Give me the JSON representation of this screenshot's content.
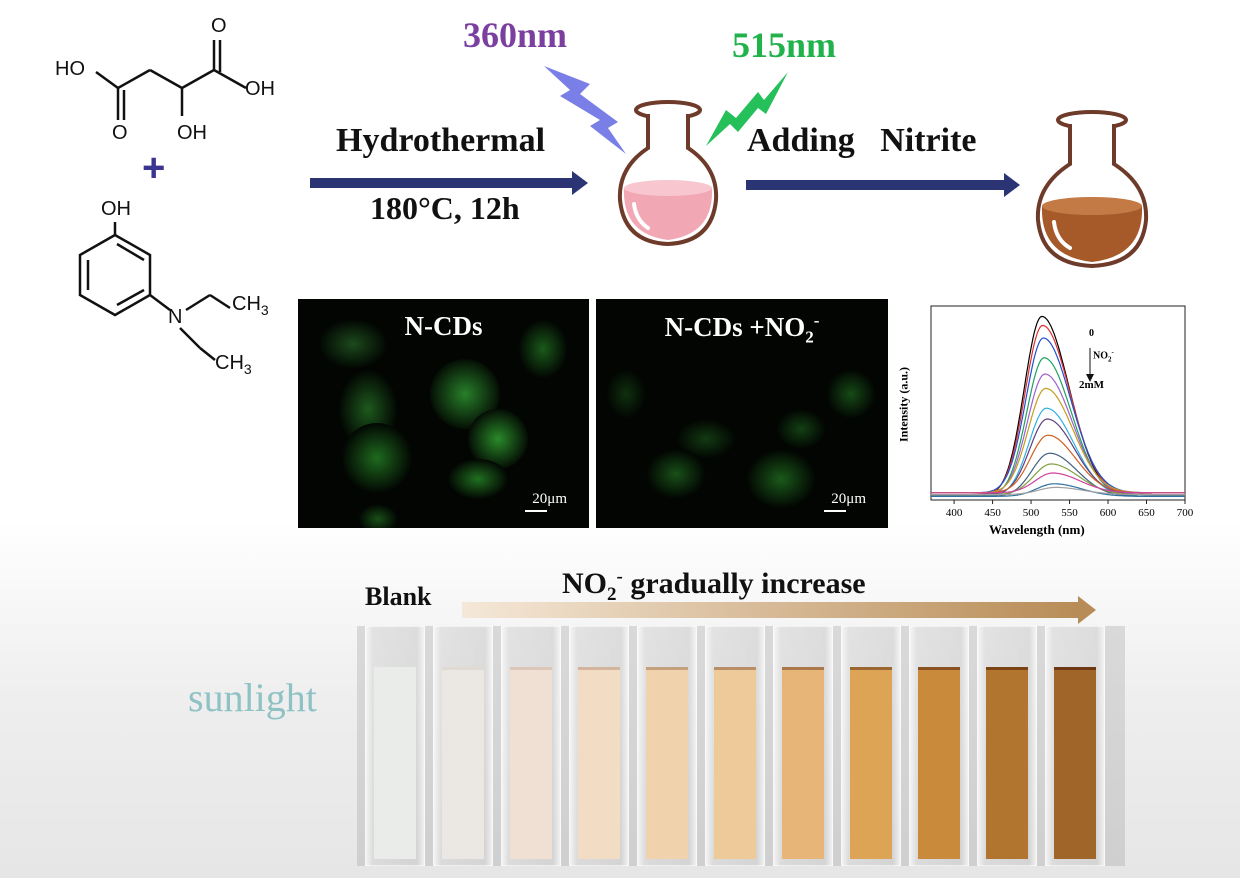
{
  "wavelengths": {
    "excitation": "360nm",
    "emission": "515nm"
  },
  "molecule1": {
    "ho": "HO",
    "oh_right": "OH",
    "o_left": "O",
    "oh_bottom": "OH",
    "o_top": "O"
  },
  "plus_sign": "+",
  "molecule2": {
    "oh": "OH",
    "n": "N",
    "ch3_top": "CH",
    "ch3_bottom": "CH",
    "sub3": "3"
  },
  "step1": {
    "label": "Hydrothermal",
    "condition": "180°C, 12h"
  },
  "step2": {
    "label": "Adding   Nitrite"
  },
  "micro_left": {
    "label": "N-CDs",
    "scale": "20μm"
  },
  "micro_right": {
    "label_main": "N-CDs +NO",
    "label_sub": "2",
    "label_sup": "-",
    "scale": "20μm"
  },
  "spectrum": {
    "ylabel": "Intensity (a.u.)",
    "xlabel": "Wavelength (nm)",
    "annot_top": "0",
    "annot_mid_main": "NO",
    "annot_mid_sub": "2",
    "annot_mid_sup": "-",
    "annot_bottom": "2mM"
  },
  "chart_data": {
    "type": "line",
    "xlabel": "Wavelength (nm)",
    "ylabel": "Intensity (a.u.)",
    "xlim": [
      370,
      700
    ],
    "x_ticks": [
      "400",
      "450",
      "500",
      "550",
      "600",
      "650",
      "700"
    ],
    "peak_x": [
      514,
      515,
      516,
      517,
      518,
      519,
      520,
      521,
      522,
      524,
      526,
      528,
      530,
      532
    ],
    "peak_intensity": [
      1.0,
      0.94,
      0.86,
      0.77,
      0.67,
      0.58,
      0.49,
      0.42,
      0.32,
      0.24,
      0.17,
      0.11,
      0.07,
      0.04
    ],
    "colors": [
      "#000000",
      "#e03030",
      "#2050d0",
      "#20a060",
      "#a060d0",
      "#c0a020",
      "#30b0e0",
      "#604080",
      "#d06020",
      "#406080",
      "#80a040",
      "#d040a0",
      "#3070a0",
      "#a0a0a0"
    ]
  },
  "bottom": {
    "blank": "Blank",
    "title_main": "NO",
    "title_sub": "2",
    "title_sup": "-",
    "title_rest": " gradually increase",
    "sunlight": "sunlight"
  },
  "cuvette_colors": [
    "#e9ece8",
    "#ebe8e4",
    "#f0e0d4",
    "#f3dcc4",
    "#f0d2ad",
    "#eec99a",
    "#e8b579",
    "#dda456",
    "#c98a3c",
    "#b27530",
    "#a06528"
  ],
  "colors": {
    "excitation": "#7b3fa0",
    "emission": "#22b24c",
    "arrow": "#2c3573",
    "sunlight": "#8fc2c4",
    "flask_pink": "#f2a8b4",
    "flask_brown": "#a65a2a"
  }
}
